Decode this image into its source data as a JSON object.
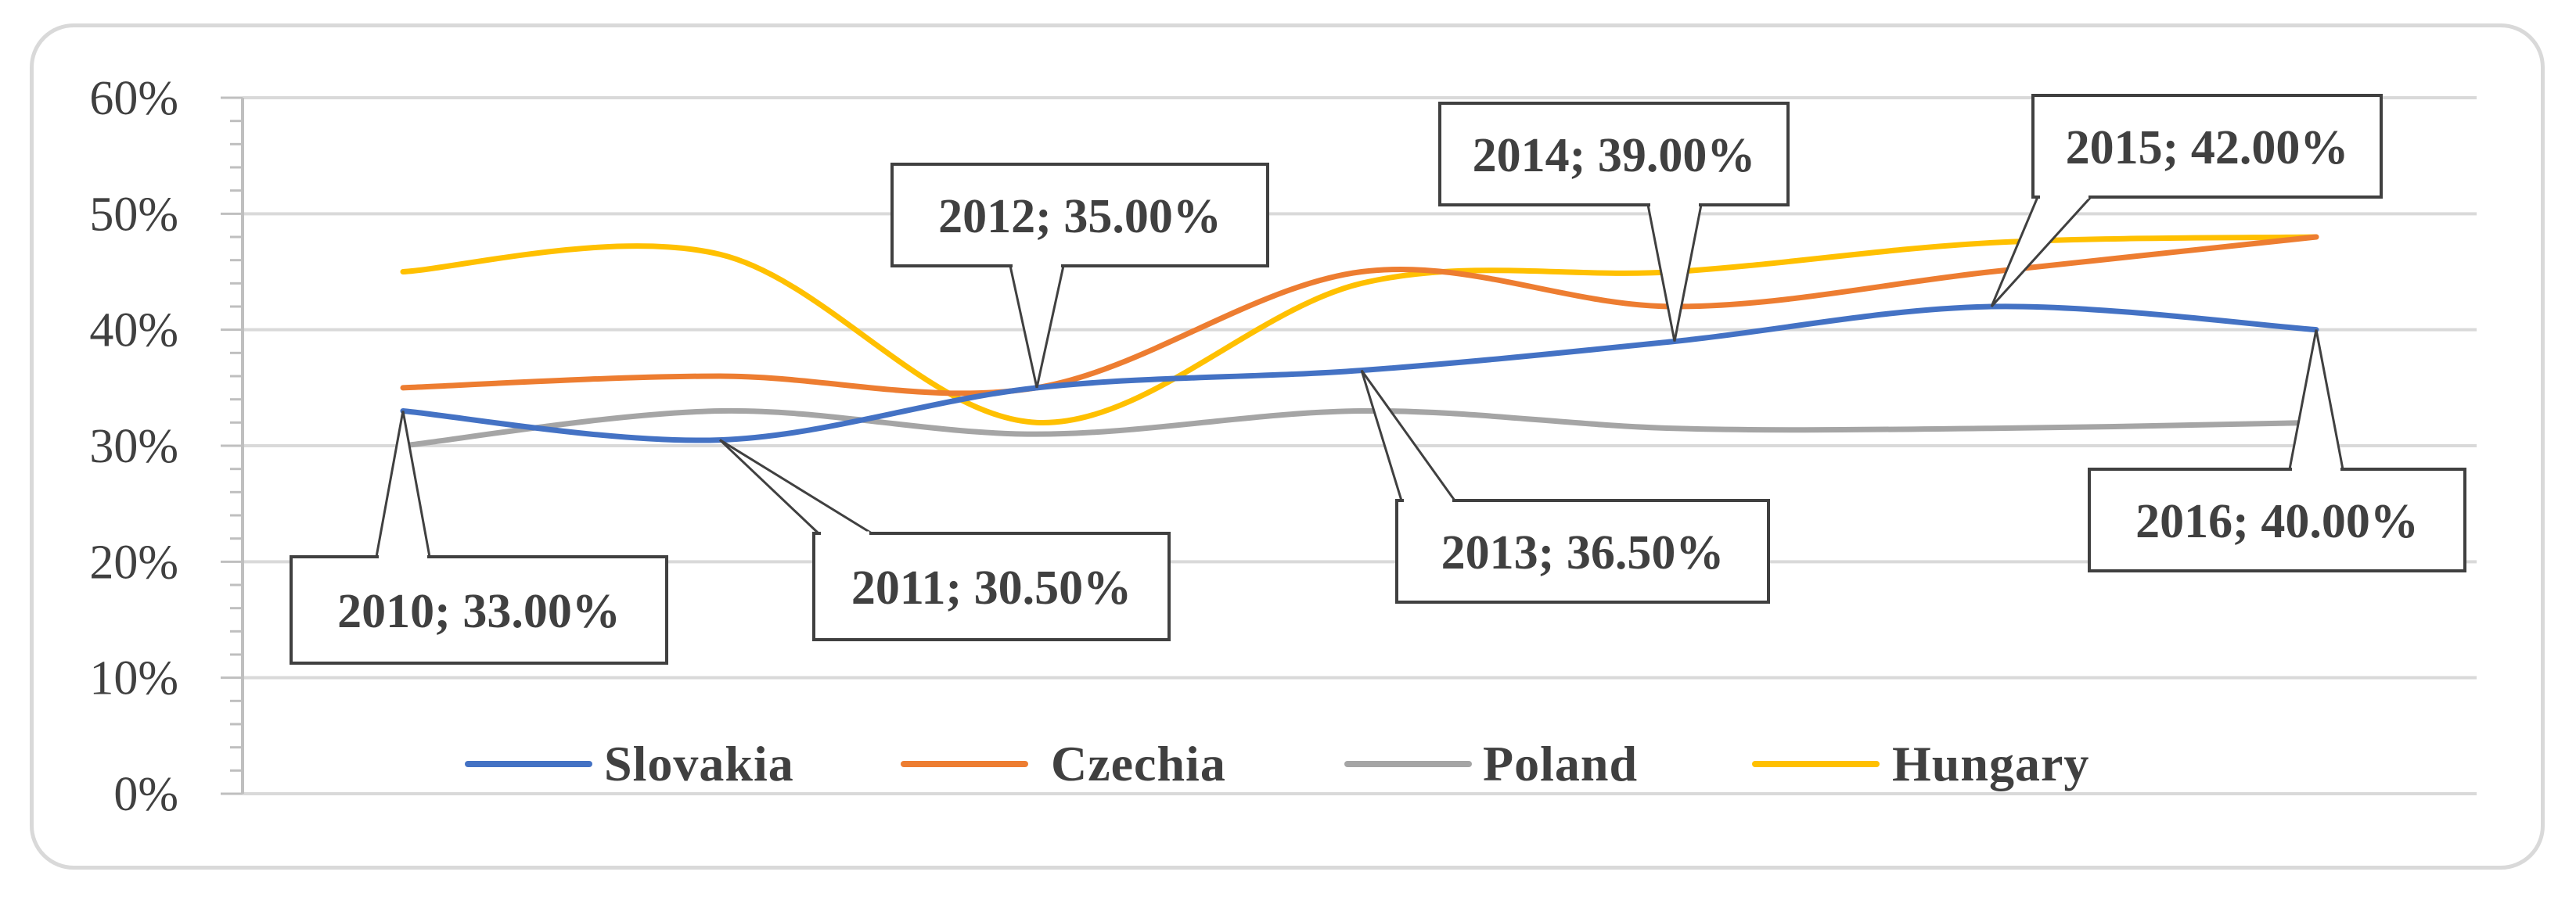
{
  "chart_data": {
    "type": "line",
    "x": [
      "2010",
      "2011",
      "2012",
      "2013",
      "2014",
      "2015",
      "2016"
    ],
    "ylim": [
      0,
      60
    ],
    "yticks": [
      "0%",
      "10%",
      "20%",
      "30%",
      "40%",
      "50%",
      "60%"
    ],
    "grid": true,
    "legend_position": "bottom",
    "series": [
      {
        "name": "Slovakia",
        "color": "#4472C4",
        "values": [
          33.0,
          30.5,
          35.0,
          36.5,
          39.0,
          42.0,
          40.0
        ]
      },
      {
        "name": "Czechia",
        "color": "#ED7D31",
        "values": [
          35.0,
          36.0,
          35.0,
          45.0,
          42.0,
          45.0,
          48.0
        ]
      },
      {
        "name": "Poland",
        "color": "#A5A5A5",
        "values": [
          30.0,
          33.0,
          31.0,
          33.0,
          31.5,
          31.5,
          32.0
        ]
      },
      {
        "name": "Hungary",
        "color": "#FFC000",
        "values": [
          45.0,
          46.5,
          32.0,
          44.0,
          45.0,
          47.5,
          48.0
        ]
      }
    ],
    "data_labels": [
      {
        "text": "2010; 33.00%"
      },
      {
        "text": "2011; 30.50%"
      },
      {
        "text": "2012; 35.00%"
      },
      {
        "text": "2013; 36.50%"
      },
      {
        "text": "2014; 39.00%"
      },
      {
        "text": "2015; 42.00%"
      },
      {
        "text": "2016; 40.00%"
      }
    ]
  }
}
